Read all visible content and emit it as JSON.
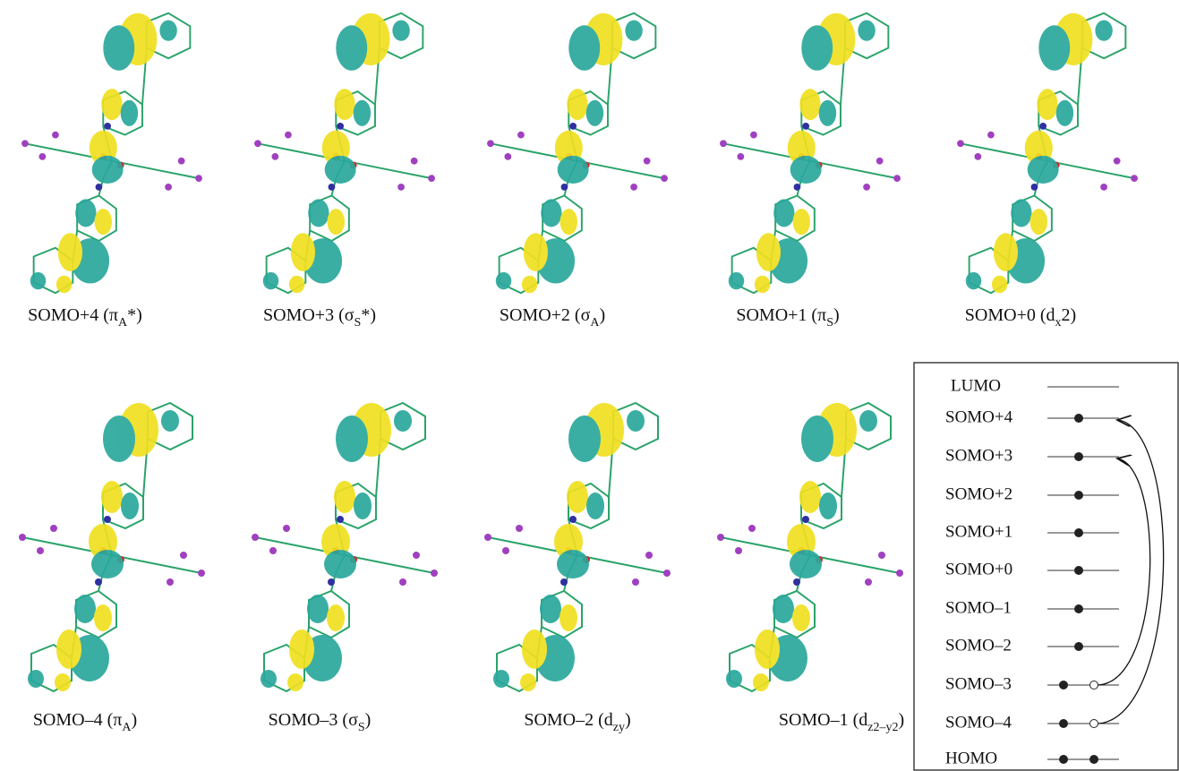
{
  "orbitals": [
    {
      "main": "SOMO+4 (π",
      "sub": "A",
      "end": "*)"
    },
    {
      "main": "SOMO+3 (σ",
      "sub": "S",
      "end": "*)"
    },
    {
      "main": "SOMO+2 (σ",
      "sub": "A",
      "end": ")"
    },
    {
      "main": "SOMO+1 (π",
      "sub": "S",
      "end": ")"
    },
    {
      "main": "SOMO+0 (d",
      "sub": "x",
      "end": "2)"
    },
    {
      "main": "SOMO–4 (π",
      "sub": "A",
      "end": ")"
    },
    {
      "main": "SOMO–3 (σ",
      "sub": "S",
      "end": ")"
    },
    {
      "main": "SOMO–2 (d",
      "sub": "zy",
      "end": ")"
    },
    {
      "main": "SOMO–1 (d",
      "sub": "z2–y2",
      "end": ")"
    }
  ],
  "levels": [
    "LUMO",
    "SOMO+4",
    "SOMO+3",
    "SOMO+2",
    "SOMO+1",
    "SOMO+0",
    "SOMO–1",
    "SOMO–2",
    "SOMO–3",
    "SOMO–4",
    "HOMO"
  ]
}
